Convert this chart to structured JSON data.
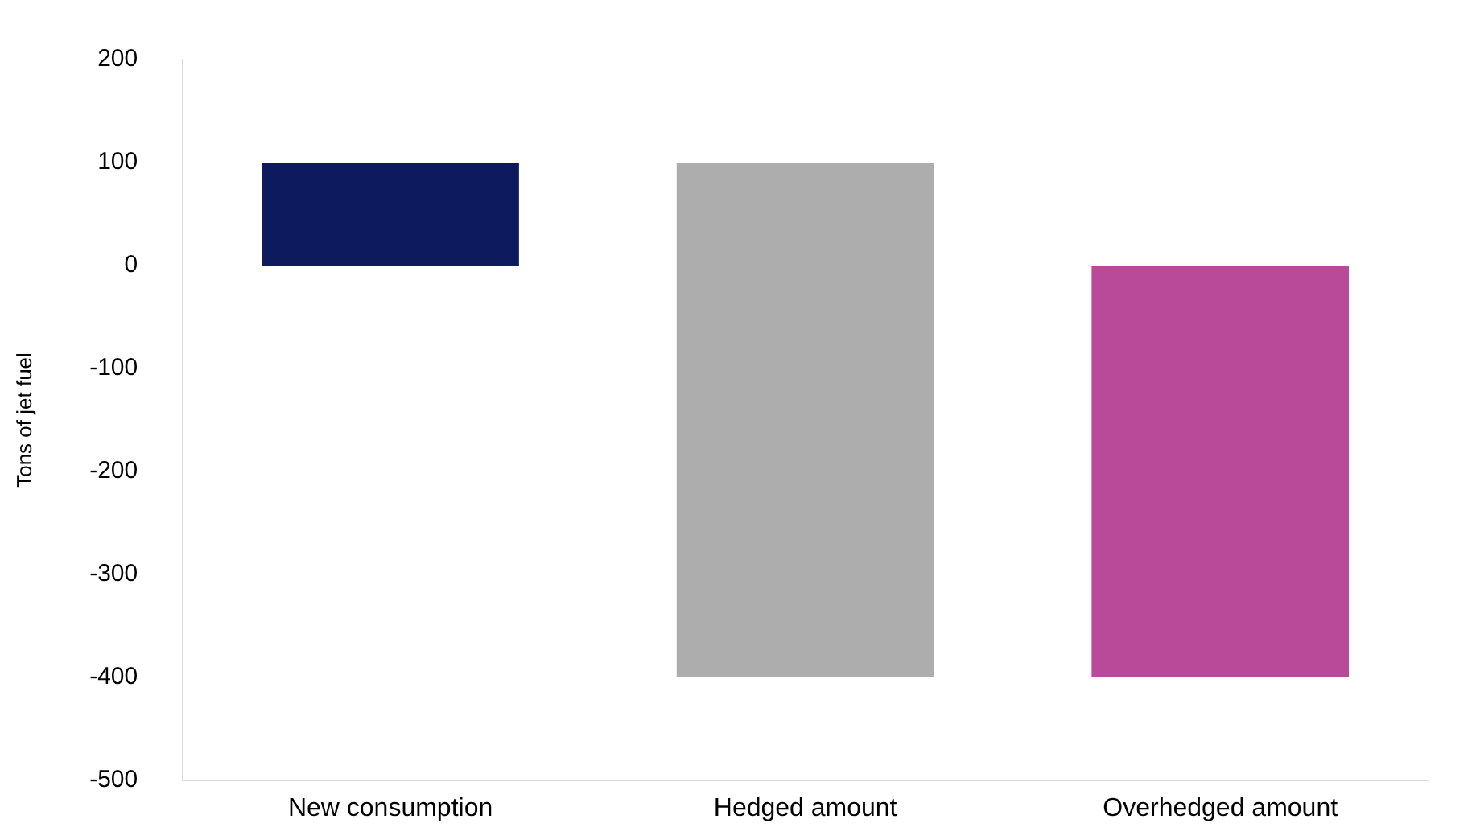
{
  "chart_data": {
    "type": "bar",
    "ylabel": "Tons of jet fuel",
    "categories": [
      "New consumption",
      "Hedged amount",
      "Overhedged amount"
    ],
    "values": [
      100,
      -500,
      400
    ],
    "base": [
      0,
      100,
      -400
    ],
    "colors": [
      "#0d1a5e",
      "#adadad",
      "#b94a9a"
    ],
    "ylim": [
      -500,
      200
    ],
    "yticks": [
      -500,
      -400,
      -300,
      -200,
      -100,
      0,
      100,
      200
    ],
    "grid": false,
    "legend": false
  }
}
